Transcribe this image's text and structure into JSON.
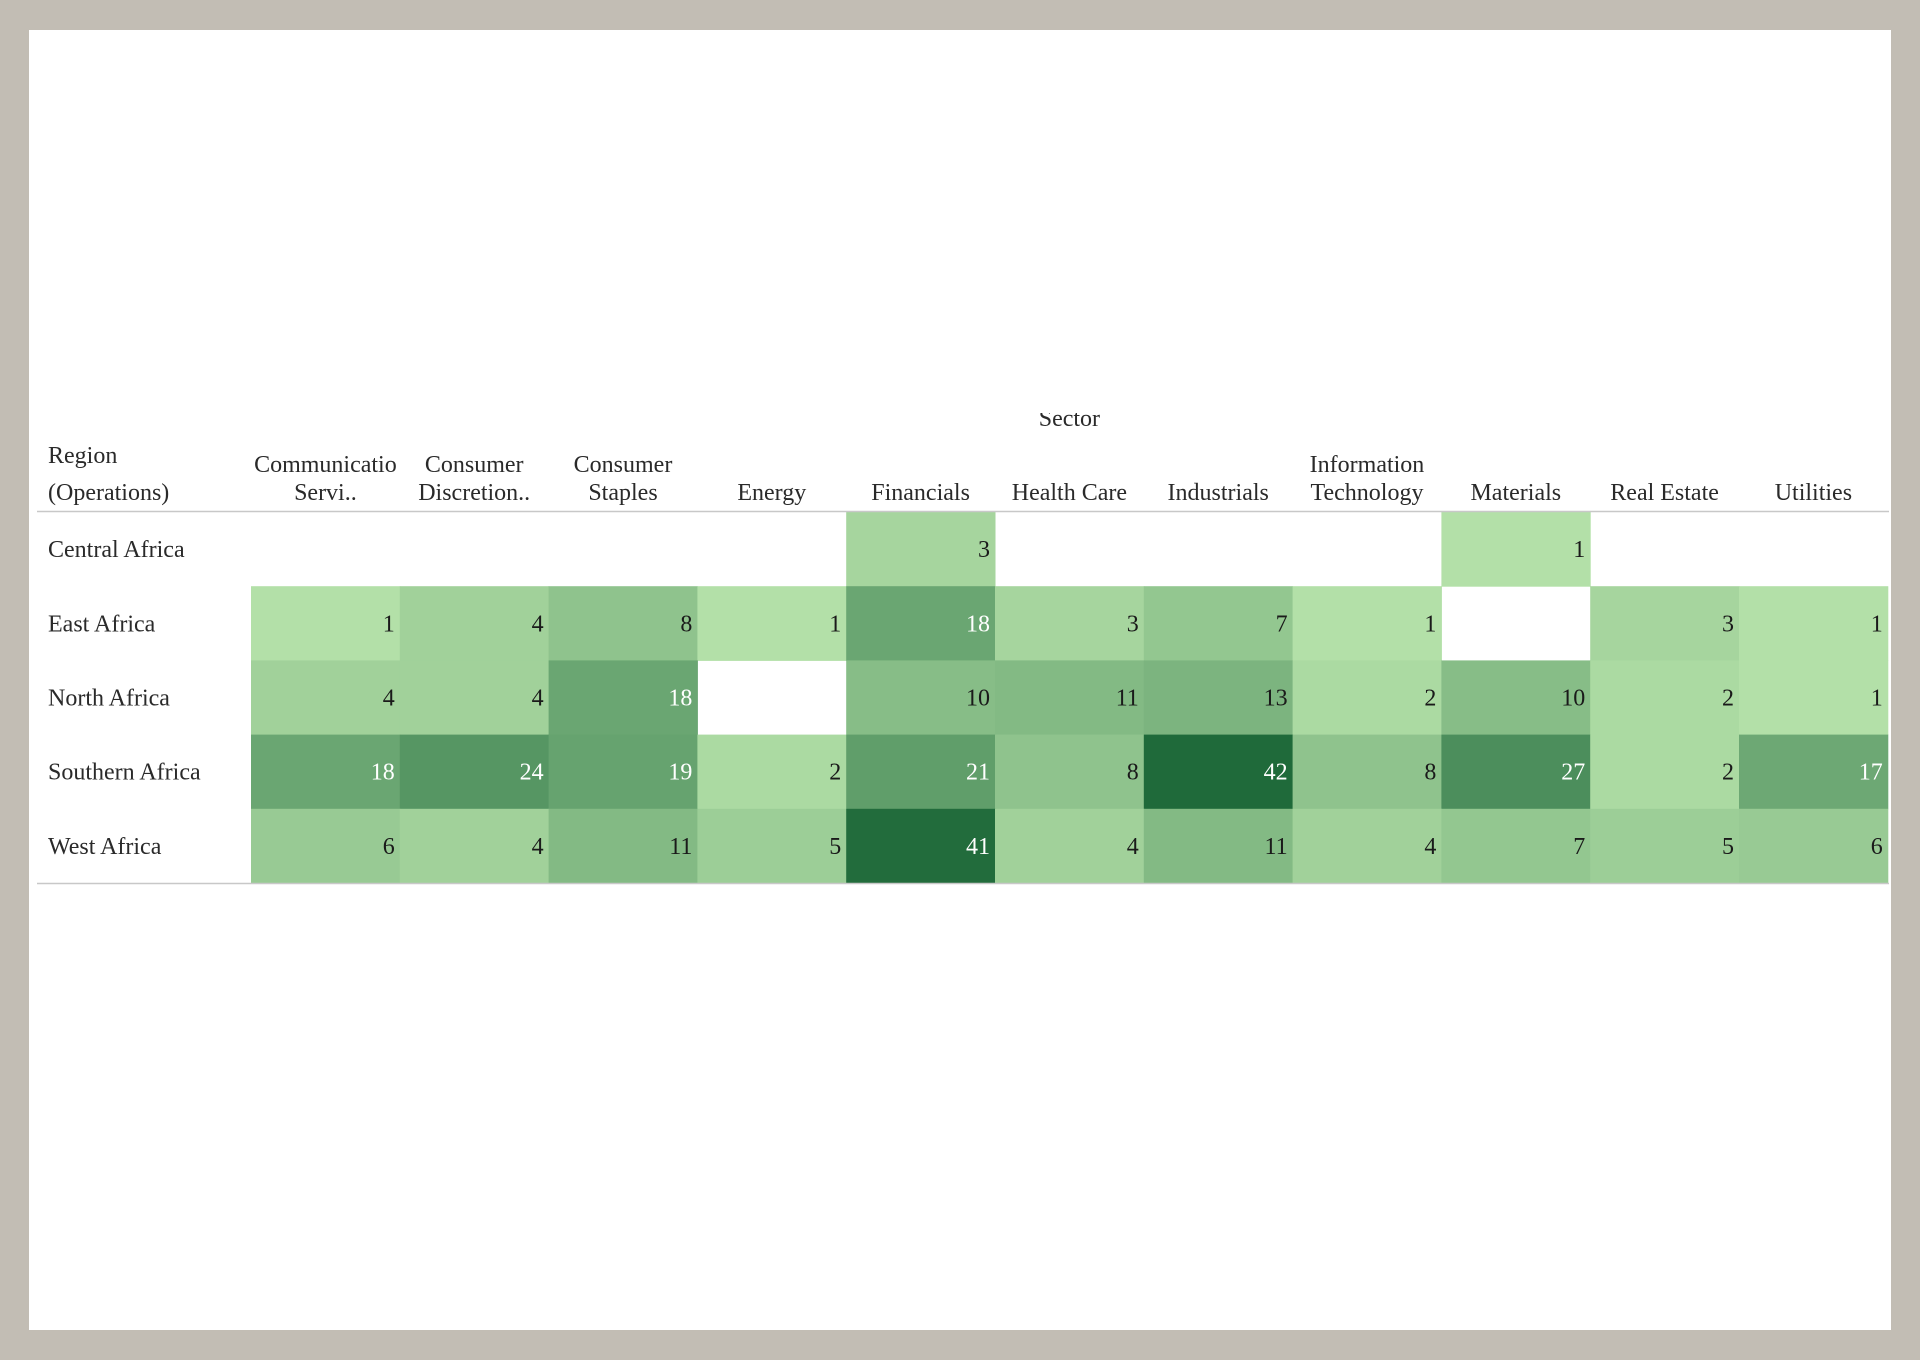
{
  "chart_data": {
    "type": "heatmap",
    "title": "",
    "column_axis_title": "Sector",
    "row_header": [
      "Region",
      "(Operations)"
    ],
    "columns": [
      [
        "Communicatio",
        "Servi.."
      ],
      [
        "Consumer",
        "Discretion.."
      ],
      [
        "Consumer",
        "Staples"
      ],
      [
        "Energy"
      ],
      [
        "Financials"
      ],
      [
        "Health Care"
      ],
      [
        "Industrials"
      ],
      [
        "Information",
        "Technology"
      ],
      [
        "Materials"
      ],
      [
        "Real Estate"
      ],
      [
        "Utilities"
      ]
    ],
    "rows": [
      "Central Africa",
      "East Africa",
      "North Africa",
      "Southern Africa",
      "West Africa"
    ],
    "values": [
      [
        null,
        null,
        null,
        null,
        3,
        null,
        null,
        null,
        1,
        null,
        null
      ],
      [
        1,
        4,
        8,
        1,
        18,
        3,
        7,
        1,
        null,
        3,
        1
      ],
      [
        4,
        4,
        18,
        null,
        10,
        11,
        13,
        2,
        10,
        2,
        1
      ],
      [
        18,
        24,
        19,
        2,
        21,
        8,
        42,
        8,
        27,
        2,
        17
      ],
      [
        6,
        4,
        11,
        5,
        41,
        4,
        11,
        4,
        7,
        5,
        6
      ]
    ],
    "color_scale": {
      "min": 1,
      "max": 42,
      "low_color": "#b3e0a8",
      "high_color": "#1f6a3a"
    },
    "grid": false
  }
}
